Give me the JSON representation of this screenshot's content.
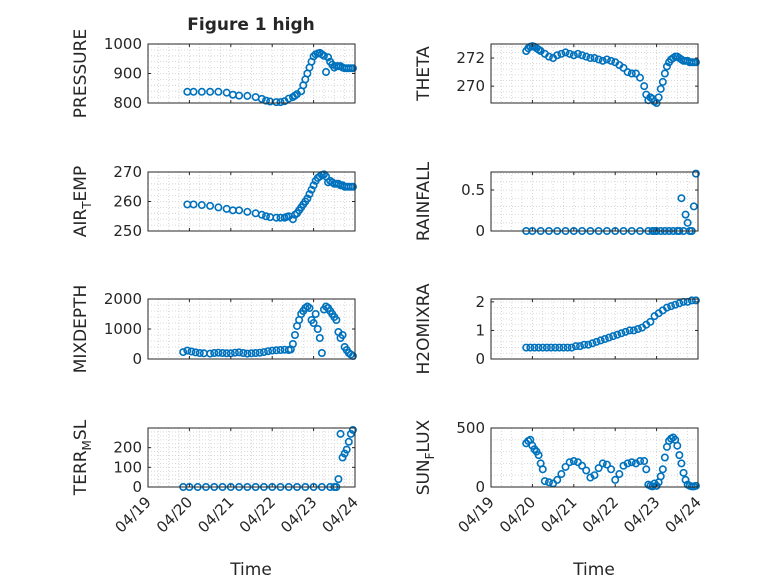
{
  "figure": {
    "title": "Figure 1 high",
    "xlabel": "Time",
    "date_ticks": [
      "04/19",
      "04/20",
      "04/21",
      "04/22",
      "04/23",
      "04/24"
    ],
    "marker_color": "#0072BD",
    "grid": true
  },
  "chart_data": [
    {
      "type": "scatter",
      "title": "Figure 1 high",
      "ylabel": [
        "PRESSURE"
      ],
      "ylim": [
        800,
        1000
      ],
      "yticks": [
        800,
        900,
        1000
      ],
      "xlim": [
        0,
        5
      ],
      "x": [
        0.95,
        1.1,
        1.3,
        1.5,
        1.7,
        1.9,
        2.05,
        2.2,
        2.4,
        2.6,
        2.75,
        2.85,
        2.95,
        3.1,
        3.2,
        3.3,
        3.4,
        3.5,
        3.55,
        3.6,
        3.7,
        3.75,
        3.8,
        3.85,
        3.9,
        3.95,
        4.0,
        4.05,
        4.1,
        4.15,
        4.2,
        4.25,
        4.3,
        4.35,
        4.4,
        4.45,
        4.5,
        4.55,
        4.6,
        4.65,
        4.7,
        4.75,
        4.8,
        4.85,
        4.9,
        4.95
      ],
      "y": [
        838,
        838,
        838,
        838,
        838,
        835,
        828,
        825,
        824,
        820,
        814,
        808,
        805,
        803,
        803,
        806,
        815,
        820,
        825,
        830,
        840,
        860,
        880,
        900,
        920,
        940,
        958,
        965,
        968,
        970,
        965,
        960,
        905,
        955,
        940,
        930,
        920,
        925,
        925,
        925,
        920,
        918,
        918,
        918,
        918,
        918
      ]
    },
    {
      "type": "scatter",
      "ylabel": [
        "THETA"
      ],
      "ylim": [
        268.8,
        273.0
      ],
      "yticks": [
        270,
        272
      ],
      "xlim": [
        0,
        5
      ],
      "x": [
        0.85,
        0.9,
        0.95,
        1.0,
        1.05,
        1.1,
        1.15,
        1.2,
        1.3,
        1.4,
        1.5,
        1.6,
        1.7,
        1.8,
        1.9,
        2.0,
        2.1,
        2.2,
        2.3,
        2.4,
        2.5,
        2.6,
        2.7,
        2.8,
        2.9,
        3.0,
        3.1,
        3.2,
        3.3,
        3.4,
        3.5,
        3.6,
        3.7,
        3.75,
        3.8,
        3.85,
        3.9,
        3.95,
        4.0,
        4.05,
        4.1,
        4.15,
        4.2,
        4.25,
        4.3,
        4.35,
        4.4,
        4.45,
        4.5,
        4.55,
        4.6,
        4.65,
        4.7,
        4.75,
        4.8,
        4.85,
        4.9,
        4.95
      ],
      "y": [
        272.5,
        272.7,
        272.8,
        272.85,
        272.8,
        272.7,
        272.6,
        272.5,
        272.3,
        272.1,
        272.0,
        272.2,
        272.3,
        272.4,
        272.3,
        272.2,
        272.3,
        272.2,
        272.1,
        272.0,
        272.0,
        271.9,
        271.8,
        271.9,
        271.8,
        271.7,
        271.5,
        271.3,
        271.0,
        270.9,
        270.9,
        270.6,
        270.0,
        269.4,
        269.0,
        269.2,
        269.1,
        268.9,
        268.8,
        269.2,
        269.8,
        270.3,
        270.9,
        271.4,
        271.7,
        271.9,
        272.0,
        272.1,
        272.1,
        272.0,
        271.9,
        271.8,
        271.8,
        271.8,
        271.7,
        271.7,
        271.7,
        271.7
      ]
    },
    {
      "type": "scatter",
      "ylabel": [
        "AIR",
        "T",
        "EMP"
      ],
      "ylim": [
        250,
        270
      ],
      "yticks": [
        250,
        260,
        270
      ],
      "xlim": [
        0,
        5
      ],
      "x": [
        0.95,
        1.1,
        1.3,
        1.5,
        1.7,
        1.9,
        2.05,
        2.2,
        2.4,
        2.6,
        2.75,
        2.85,
        2.95,
        3.1,
        3.2,
        3.3,
        3.35,
        3.4,
        3.5,
        3.55,
        3.6,
        3.65,
        3.7,
        3.75,
        3.8,
        3.85,
        3.9,
        3.95,
        4.0,
        4.05,
        4.1,
        4.15,
        4.2,
        4.25,
        4.3,
        4.35,
        4.4,
        4.45,
        4.5,
        4.55,
        4.6,
        4.65,
        4.7,
        4.75,
        4.8,
        4.85,
        4.9,
        4.95
      ],
      "y": [
        259.0,
        259.0,
        258.8,
        258.5,
        258.0,
        257.5,
        257.0,
        257.0,
        256.5,
        256.0,
        255.5,
        255.0,
        254.7,
        254.5,
        254.5,
        254.5,
        254.8,
        255.0,
        254.0,
        255.5,
        256.0,
        257.0,
        258.0,
        259.0,
        260.0,
        261.0,
        262.5,
        264.0,
        265.5,
        267.0,
        268.0,
        268.5,
        269.0,
        269.2,
        268.5,
        266.5,
        267.0,
        266.5,
        266.0,
        266.0,
        266.0,
        265.5,
        265.5,
        265.0,
        265.0,
        265.0,
        265.0,
        265.0
      ]
    },
    {
      "type": "scatter",
      "ylabel": [
        "RAINFALL"
      ],
      "ylim": [
        0,
        0.72
      ],
      "yticks": [
        0,
        0.5
      ],
      "xlim": [
        0,
        5
      ],
      "x": [
        0.85,
        1.0,
        1.2,
        1.4,
        1.6,
        1.8,
        2.0,
        2.2,
        2.4,
        2.6,
        2.8,
        3.0,
        3.2,
        3.4,
        3.6,
        3.8,
        3.9,
        3.95,
        4.0,
        4.1,
        4.2,
        4.3,
        4.4,
        4.5,
        4.55,
        4.6,
        4.65,
        4.7,
        4.75,
        4.8,
        4.85,
        4.9,
        4.95
      ],
      "y": [
        0,
        0,
        0,
        0,
        0,
        0,
        0,
        0,
        0,
        0,
        0,
        0,
        0,
        0,
        0,
        0,
        0,
        0,
        0,
        0,
        0,
        0,
        0,
        0,
        0,
        0.4,
        0,
        0.2,
        0.1,
        0,
        0,
        0.3,
        0.7
      ]
    },
    {
      "type": "scatter",
      "ylabel": [
        "MIXDEPTH"
      ],
      "ylim": [
        0,
        2000
      ],
      "yticks": [
        0,
        1000,
        2000
      ],
      "xlim": [
        0,
        5
      ],
      "x": [
        0.85,
        0.95,
        1.05,
        1.15,
        1.25,
        1.35,
        1.5,
        1.6,
        1.7,
        1.8,
        1.9,
        2.0,
        2.1,
        2.2,
        2.3,
        2.4,
        2.5,
        2.6,
        2.7,
        2.8,
        2.9,
        3.0,
        3.1,
        3.2,
        3.3,
        3.4,
        3.45,
        3.5,
        3.55,
        3.6,
        3.65,
        3.7,
        3.75,
        3.8,
        3.85,
        3.9,
        3.95,
        4.0,
        4.05,
        4.1,
        4.15,
        4.2,
        4.25,
        4.3,
        4.35,
        4.4,
        4.45,
        4.5,
        4.55,
        4.6,
        4.65,
        4.7,
        4.75,
        4.8,
        4.85,
        4.9,
        4.95
      ],
      "y": [
        230,
        280,
        250,
        220,
        200,
        190,
        180,
        200,
        210,
        200,
        190,
        190,
        210,
        220,
        200,
        180,
        190,
        200,
        210,
        230,
        260,
        280,
        290,
        300,
        310,
        300,
        320,
        500,
        800,
        1100,
        1300,
        1500,
        1600,
        1700,
        1750,
        1700,
        1300,
        1200,
        1500,
        1000,
        700,
        200,
        1650,
        1750,
        1700,
        1600,
        1500,
        1400,
        1300,
        900,
        700,
        800,
        400,
        300,
        200,
        150,
        100
      ]
    },
    {
      "type": "scatter",
      "ylabel": [
        "H2OMIXRA"
      ],
      "ylim": [
        0,
        2.1
      ],
      "yticks": [
        0,
        1,
        2
      ],
      "xlim": [
        0,
        5
      ],
      "x": [
        0.85,
        0.95,
        1.05,
        1.15,
        1.25,
        1.35,
        1.45,
        1.55,
        1.65,
        1.75,
        1.85,
        1.95,
        2.05,
        2.15,
        2.25,
        2.35,
        2.45,
        2.55,
        2.65,
        2.75,
        2.85,
        2.95,
        3.05,
        3.15,
        3.25,
        3.35,
        3.45,
        3.55,
        3.65,
        3.75,
        3.85,
        3.95,
        4.05,
        4.15,
        4.25,
        4.35,
        4.45,
        4.55,
        4.65,
        4.75,
        4.85,
        4.95
      ],
      "y": [
        0.4,
        0.4,
        0.4,
        0.4,
        0.4,
        0.4,
        0.4,
        0.4,
        0.4,
        0.4,
        0.4,
        0.4,
        0.45,
        0.45,
        0.5,
        0.5,
        0.55,
        0.6,
        0.65,
        0.7,
        0.75,
        0.8,
        0.85,
        0.9,
        0.95,
        1.0,
        1.0,
        1.05,
        1.1,
        1.2,
        1.3,
        1.5,
        1.6,
        1.7,
        1.8,
        1.85,
        1.9,
        1.95,
        2.0,
        2.0,
        2.05,
        2.05
      ]
    },
    {
      "type": "scatter",
      "ylabel": [
        "TERR",
        "M",
        "SL"
      ],
      "ylim": [
        0,
        300
      ],
      "yticks": [
        0,
        100,
        200
      ],
      "xlim": [
        0,
        5
      ],
      "x": [
        0.85,
        1.0,
        1.2,
        1.4,
        1.6,
        1.8,
        2.0,
        2.2,
        2.4,
        2.6,
        2.8,
        3.0,
        3.2,
        3.4,
        3.6,
        3.8,
        4.0,
        4.2,
        4.4,
        4.5,
        4.55,
        4.6,
        4.65,
        4.7,
        4.75,
        4.8,
        4.85,
        4.9,
        4.95
      ],
      "y": [
        0,
        0,
        0,
        0,
        0,
        0,
        0,
        0,
        0,
        0,
        0,
        0,
        0,
        0,
        0,
        0,
        0,
        0,
        0,
        0,
        0,
        40,
        270,
        150,
        170,
        190,
        230,
        270,
        290
      ]
    },
    {
      "type": "scatter",
      "ylabel": [
        "SUN",
        "F",
        "LUX"
      ],
      "ylim": [
        0,
        500
      ],
      "yticks": [
        0,
        500
      ],
      "xlim": [
        0,
        5
      ],
      "x": [
        0.85,
        0.9,
        0.95,
        1.0,
        1.05,
        1.1,
        1.15,
        1.2,
        1.25,
        1.3,
        1.4,
        1.5,
        1.6,
        1.7,
        1.8,
        1.9,
        2.0,
        2.1,
        2.2,
        2.3,
        2.4,
        2.5,
        2.6,
        2.7,
        2.8,
        2.9,
        3.0,
        3.1,
        3.2,
        3.3,
        3.4,
        3.5,
        3.6,
        3.7,
        3.75,
        3.8,
        3.85,
        3.9,
        3.95,
        4.0,
        4.05,
        4.1,
        4.15,
        4.2,
        4.25,
        4.3,
        4.35,
        4.4,
        4.45,
        4.5,
        4.55,
        4.6,
        4.65,
        4.7,
        4.75,
        4.8,
        4.85,
        4.9,
        4.95
      ],
      "y": [
        370,
        390,
        400,
        350,
        320,
        300,
        270,
        200,
        150,
        50,
        40,
        30,
        60,
        110,
        170,
        210,
        220,
        210,
        180,
        140,
        80,
        100,
        160,
        200,
        190,
        150,
        60,
        110,
        180,
        200,
        210,
        200,
        220,
        220,
        150,
        20,
        10,
        5,
        30,
        10,
        40,
        90,
        150,
        250,
        340,
        390,
        410,
        420,
        400,
        350,
        270,
        200,
        120,
        60,
        20,
        10,
        5,
        5,
        10
      ]
    }
  ]
}
